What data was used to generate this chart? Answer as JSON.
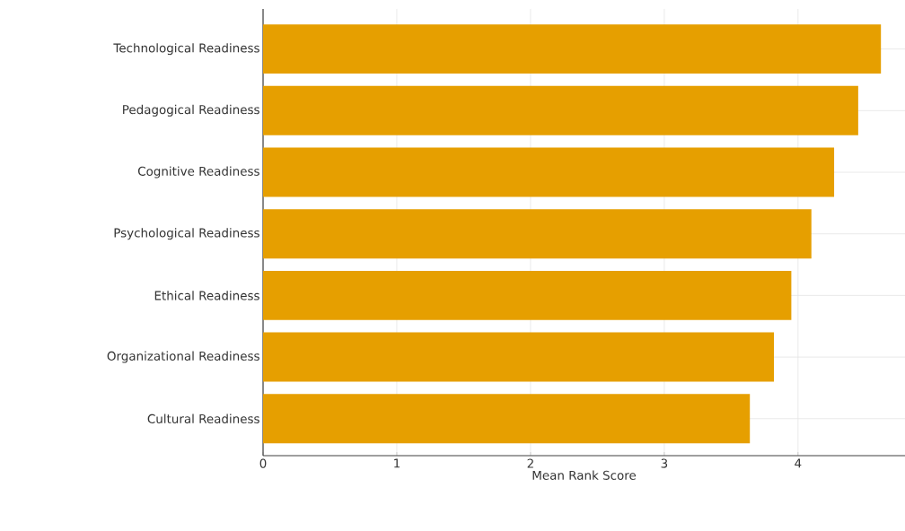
{
  "chart_data": {
    "type": "bar",
    "orientation": "horizontal",
    "xlabel": "Mean Rank Score",
    "categories": [
      "Technological Readiness",
      "Pedagogical Readiness",
      "Cognitive Readiness",
      "Psychological Readiness",
      "Ethical Readiness",
      "Organizational Readiness",
      "Cultural Readiness"
    ],
    "values": [
      4.62,
      4.45,
      4.27,
      4.1,
      3.95,
      3.82,
      3.64
    ],
    "color": "#e69f00",
    "xlim": [
      0,
      4.8
    ],
    "xticks": [
      0,
      1,
      2,
      3,
      4
    ],
    "grid": true
  }
}
